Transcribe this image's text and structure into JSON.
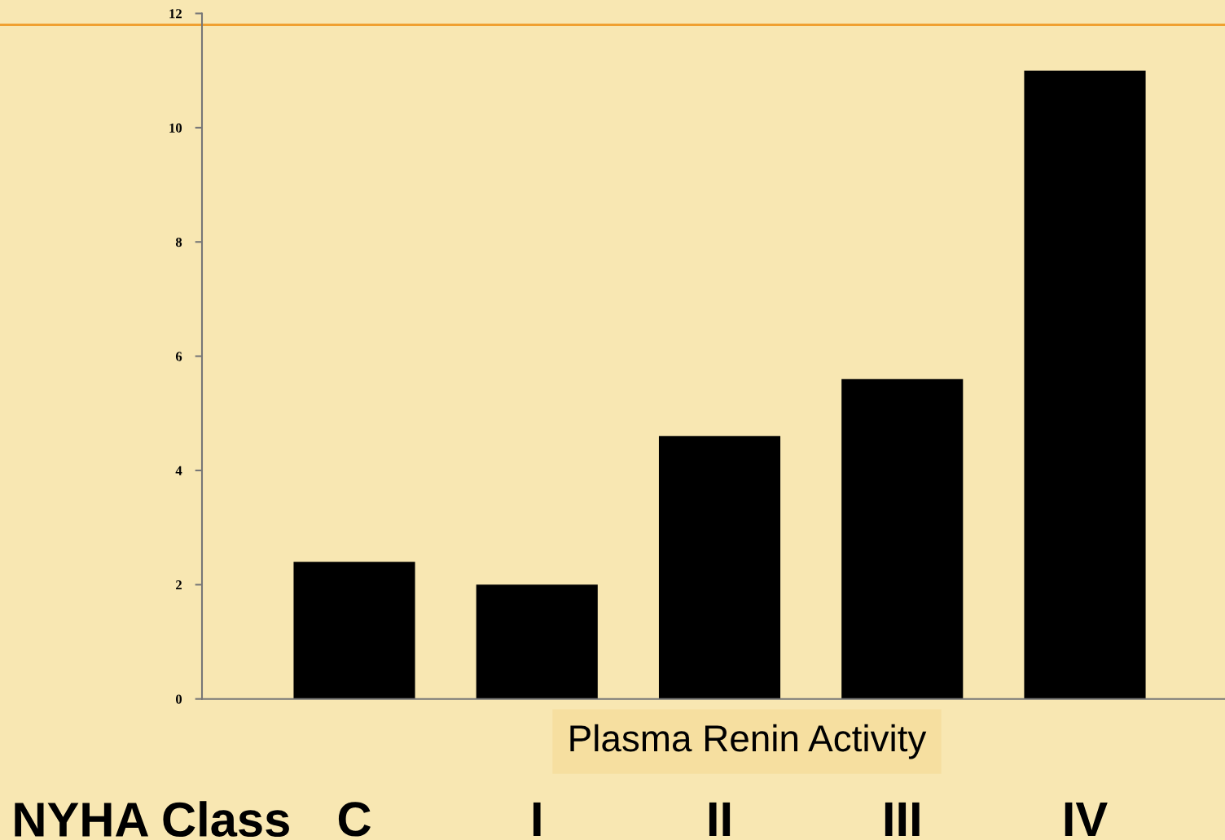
{
  "chart_data": {
    "type": "bar",
    "title": "Plasma Renin Activity",
    "xlabel": "NYHA Class",
    "categories": [
      "C",
      "I",
      "II",
      "III",
      "IV"
    ],
    "series": [
      {
        "color": "#000000",
        "values": [
          2.4,
          2.0,
          4.6,
          5.6,
          11.0
        ]
      }
    ],
    "ylim": [
      0,
      12
    ],
    "yticks": [
      0,
      2,
      4,
      6,
      8,
      10,
      12
    ],
    "grid": false,
    "ref_lines": [
      {
        "axis": "y",
        "value": 11.8,
        "color": "#f0a030"
      }
    ]
  }
}
